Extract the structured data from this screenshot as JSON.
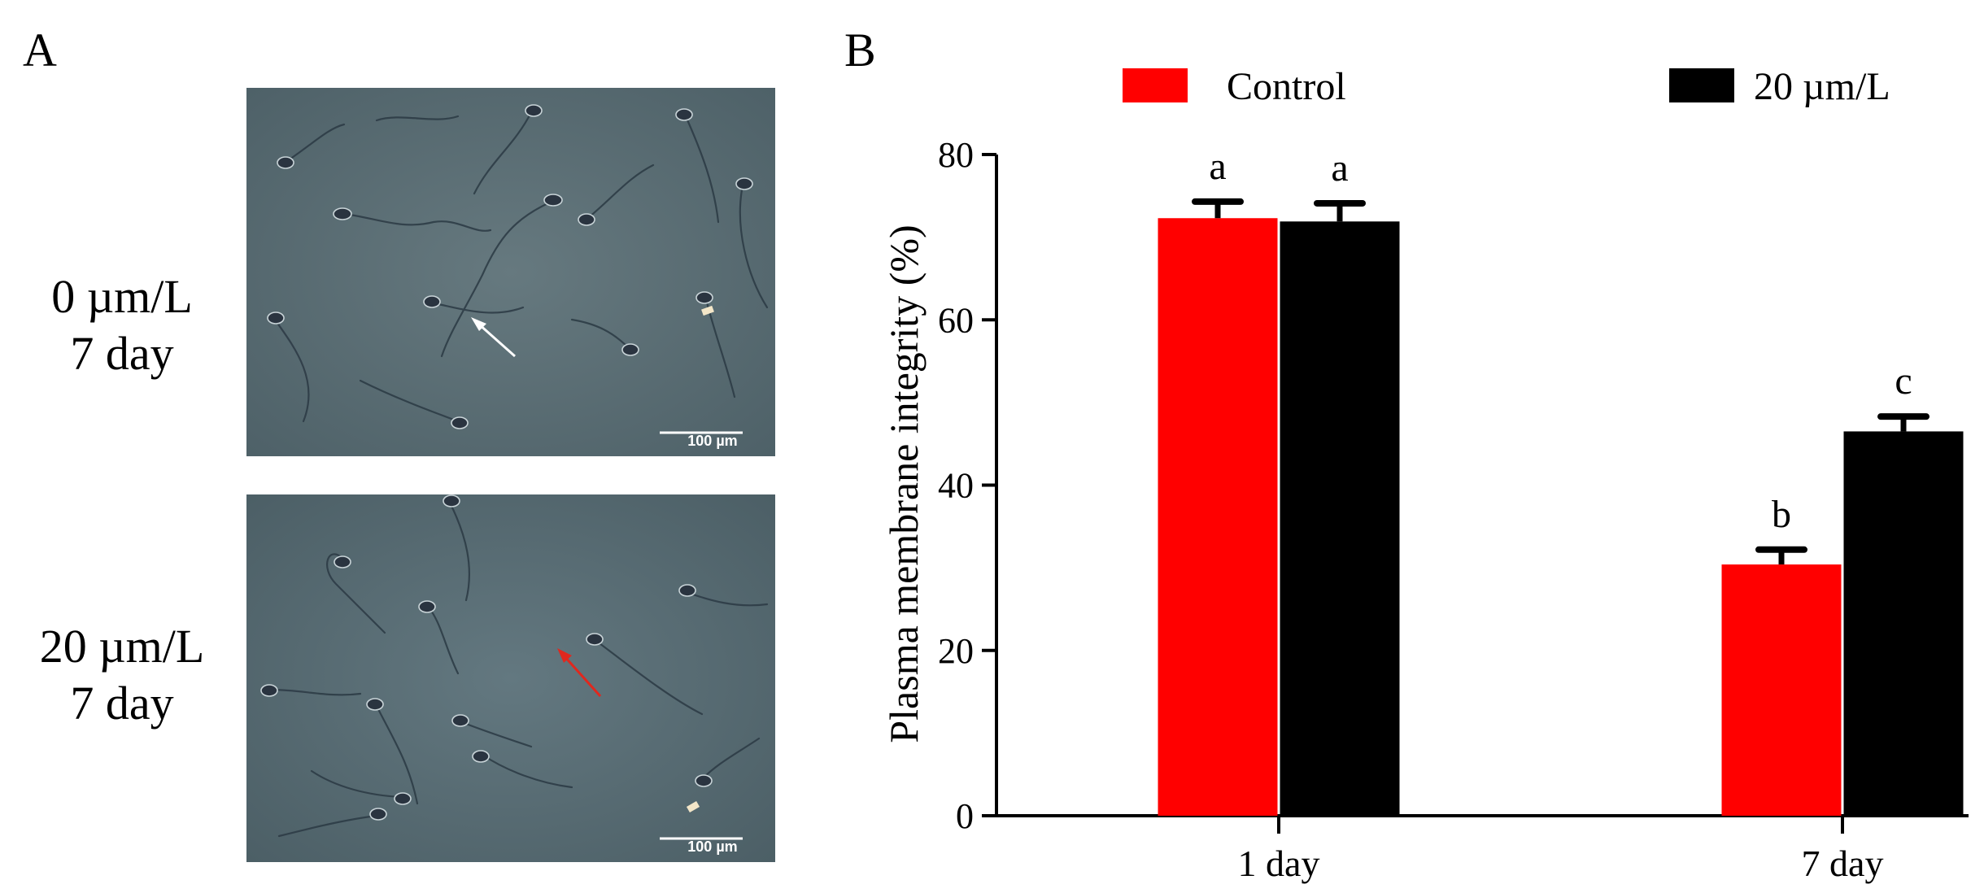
{
  "panels": {
    "a_letter": "A",
    "b_letter": "B"
  },
  "micrographs": {
    "rows": [
      {
        "line1": "0 µm/L",
        "line2": "7 day",
        "scale_bar": "100 µm",
        "arrow_color": "#ffffff"
      },
      {
        "line1": "20 µm/L",
        "line2": "7 day",
        "scale_bar": "100 µm",
        "arrow_color": "#e0281e"
      }
    ],
    "background_color": "#5c7077"
  },
  "chart_data": {
    "type": "bar",
    "categories": [
      "1 day",
      "7 day"
    ],
    "series": [
      {
        "name": "Control",
        "color": "#ff0000",
        "values": [
          72.3,
          30.4
        ],
        "errors": [
          2.0,
          1.8
        ],
        "letters": [
          "a",
          "b"
        ]
      },
      {
        "name": "20 µm/L",
        "color": "#000000",
        "values": [
          71.9,
          46.5
        ],
        "errors": [
          2.2,
          1.8
        ],
        "letters": [
          "a",
          "c"
        ]
      }
    ],
    "ylabel": "Plasma membrane integrity (%)",
    "xlabel": "",
    "ylim": [
      0,
      80
    ],
    "yticks": [
      0,
      20,
      40,
      60,
      80
    ],
    "legend_position": "top",
    "grid": false
  }
}
